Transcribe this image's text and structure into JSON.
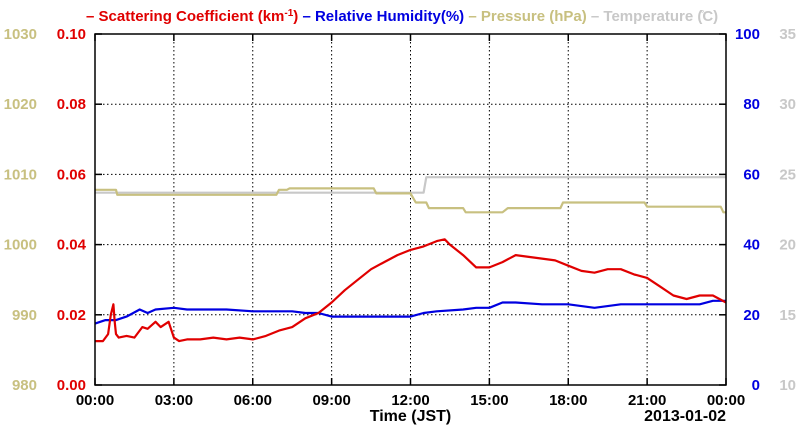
{
  "chart_data": {
    "type": "line",
    "legend": {
      "placement": "top",
      "items": [
        {
          "dash": "–",
          "label": "Scattering Coefficient (km",
          "sup": "-1",
          "close": ")",
          "color": "#e00000"
        },
        {
          "dash": "–",
          "label": "Relative Humidity(%)",
          "color": "#0000e0"
        },
        {
          "dash": "–",
          "label": "Pressure (hPa)",
          "color": "#c8c080"
        },
        {
          "dash": "–",
          "label": "Temperature (̊C)",
          "color": "#c8c8c8"
        }
      ]
    },
    "xlabel": "Time (JST)",
    "date_label": "2013-01-02",
    "x_range_hours": [
      0,
      24
    ],
    "x_ticks": [
      "00:00",
      "03:00",
      "06:00",
      "09:00",
      "12:00",
      "15:00",
      "18:00",
      "21:00",
      "00:00"
    ],
    "grid": true,
    "axes": {
      "scattering": {
        "side": "left-inner",
        "color": "#e00000",
        "ylim": [
          0,
          0.1
        ],
        "tick_labels": [
          "0.00",
          "0.02",
          "0.04",
          "0.06",
          "0.08",
          "0.10"
        ]
      },
      "pressure": {
        "side": "left-outer",
        "color": "#c8c080",
        "ylim": [
          980,
          1030
        ],
        "tick_labels": [
          "980",
          "990",
          "1000",
          "1010",
          "1020",
          "1030"
        ]
      },
      "humidity": {
        "side": "right-inner",
        "color": "#0000e0",
        "ylim": [
          0,
          100
        ],
        "tick_labels": [
          "0",
          "20",
          "40",
          "60",
          "80",
          "100"
        ]
      },
      "temperature": {
        "side": "right-outer",
        "color": "#c8c8c8",
        "ylim": [
          10,
          35
        ],
        "tick_labels": [
          "10",
          "15",
          "20",
          "25",
          "30",
          "35"
        ]
      }
    },
    "series": [
      {
        "name": "Scattering Coefficient",
        "axis": "scattering",
        "color": "#e00000",
        "x": [
          0,
          0.3,
          0.5,
          0.6,
          0.7,
          0.75,
          0.8,
          0.9,
          1.2,
          1.5,
          1.8,
          2.0,
          2.3,
          2.5,
          2.8,
          3.0,
          3.2,
          3.5,
          4.0,
          4.5,
          5.0,
          5.5,
          6.0,
          6.5,
          7.0,
          7.5,
          8.0,
          8.5,
          9.0,
          9.5,
          10.0,
          10.5,
          11.0,
          11.5,
          12.0,
          12.5,
          13.0,
          13.3,
          13.5,
          14.0,
          14.5,
          15.0,
          15.5,
          16.0,
          16.5,
          17.0,
          17.5,
          18.0,
          18.5,
          19.0,
          19.5,
          20.0,
          20.5,
          21.0,
          21.5,
          22.0,
          22.5,
          23.0,
          23.5,
          24.0
        ],
        "y": [
          0.0125,
          0.0125,
          0.0145,
          0.02,
          0.023,
          0.018,
          0.0145,
          0.0135,
          0.014,
          0.0135,
          0.0165,
          0.016,
          0.018,
          0.0165,
          0.018,
          0.0135,
          0.0125,
          0.013,
          0.013,
          0.0135,
          0.013,
          0.0135,
          0.013,
          0.014,
          0.0155,
          0.0165,
          0.019,
          0.0205,
          0.0235,
          0.027,
          0.03,
          0.033,
          0.035,
          0.037,
          0.0385,
          0.0395,
          0.041,
          0.0415,
          0.04,
          0.037,
          0.0335,
          0.0335,
          0.035,
          0.037,
          0.0365,
          0.036,
          0.0355,
          0.034,
          0.0325,
          0.032,
          0.033,
          0.033,
          0.0315,
          0.0305,
          0.028,
          0.0255,
          0.0245,
          0.0255,
          0.0255,
          0.0235
        ]
      },
      {
        "name": "Relative Humidity",
        "axis": "humidity",
        "color": "#0000e0",
        "x": [
          0,
          0.4,
          0.8,
          1.2,
          1.7,
          2.0,
          2.3,
          3.0,
          3.5,
          4.0,
          5.0,
          6.0,
          7.0,
          7.5,
          8.0,
          8.5,
          9.0,
          10.0,
          11.0,
          12.0,
          12.5,
          13.0,
          14.0,
          14.5,
          15.0,
          15.5,
          16.0,
          17.0,
          18.0,
          19.0,
          20.0,
          21.0,
          22.0,
          23.0,
          23.5,
          24.0
        ],
        "y": [
          17.5,
          18.5,
          18.5,
          19.5,
          21.5,
          20.5,
          21.5,
          22,
          21.5,
          21.5,
          21.5,
          21,
          21,
          21,
          20.5,
          20.5,
          19.5,
          19.5,
          19.5,
          19.5,
          20.5,
          21,
          21.5,
          22,
          22,
          23.5,
          23.5,
          23,
          23,
          22,
          23,
          23,
          23,
          23,
          24,
          24
        ]
      },
      {
        "name": "Pressure",
        "axis": "pressure",
        "color": "#c8c080",
        "x": [
          0,
          0.8,
          0.85,
          6.9,
          7.0,
          7.3,
          7.4,
          10.6,
          10.7,
          12.0,
          12.2,
          12.6,
          12.7,
          14.0,
          14.1,
          15.5,
          15.7,
          17.7,
          17.8,
          20.9,
          21.0,
          23.8,
          23.9,
          24.0
        ],
        "y": [
          1007.8,
          1007.8,
          1007.1,
          1007.1,
          1007.8,
          1007.8,
          1008.0,
          1008.0,
          1007.3,
          1007.3,
          1006.0,
          1006.0,
          1005.2,
          1005.2,
          1004.6,
          1004.6,
          1005.2,
          1005.2,
          1006.0,
          1006.0,
          1005.4,
          1005.4,
          1004.6,
          1004.6
        ]
      },
      {
        "name": "Temperature",
        "axis": "temperature",
        "color": "#c8c8c8",
        "x": [
          0,
          12.5,
          12.6,
          24.0
        ],
        "y": [
          23.7,
          23.7,
          24.8,
          24.8
        ]
      }
    ]
  }
}
